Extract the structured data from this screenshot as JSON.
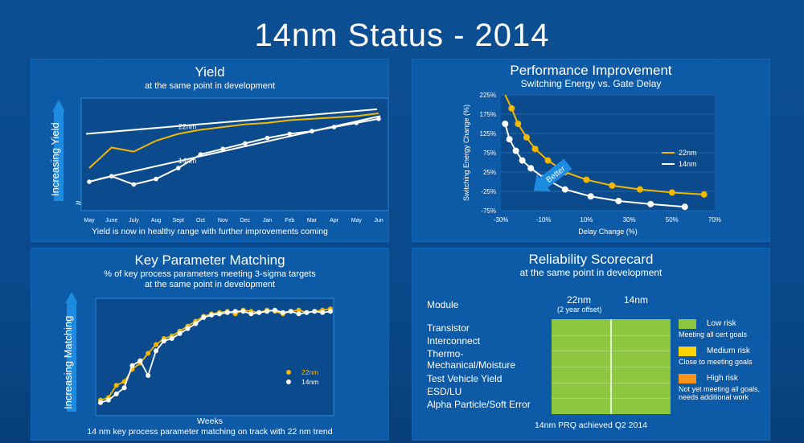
{
  "page_title": "14nm Status - 2014",
  "yield": {
    "title": "Yield",
    "subtitle": "at the same point in development",
    "footer": "Yield is now in healthy range with further improvements coming",
    "arrow_label": "Increasing Yield",
    "break_mark": "≈"
  },
  "performance": {
    "title": "Performance Improvement",
    "subtitle": "Switching Energy vs. Gate Delay",
    "better_label": "Better"
  },
  "key_param": {
    "title": "Key Parameter Matching",
    "subtitle_line1": "% of key process parameters meeting 3-sigma targets",
    "subtitle_line2": "at the same point in development",
    "footer_line1": "Weeks",
    "footer_line2": "14 nm key process parameter matching on track with 22 nm trend",
    "arrow_label": "Increasing Matching"
  },
  "reliability": {
    "title": "Reliability Scorecard",
    "subtitle": "at the same point in development",
    "module_header": "Module",
    "col_22nm": "22nm",
    "col_22nm_note": "(2 year offset)",
    "col_14nm": "14nm",
    "modules": [
      "Transistor",
      "Interconnect",
      "Thermo-\nMechanical/Moisture",
      "Test Vehicle Yield",
      "ESD/LU",
      "Alpha Particle/Soft Error"
    ],
    "footer": "14nm PRQ achieved Q2 2014",
    "legend": [
      {
        "label": "Low risk",
        "desc": "Meeting all cert goals",
        "color": "#8dc63f"
      },
      {
        "label": "Medium risk",
        "desc": "Close to meeting goals",
        "color": "#ffd200"
      },
      {
        "label": "High risk",
        "desc": "Not yet meeting all goals, needs additional work",
        "color": "#f7941d"
      }
    ],
    "cell_color": "#8dc63f"
  },
  "chart_data": [
    {
      "type": "line",
      "title": "Yield",
      "categories": [
        "May",
        "June",
        "July",
        "Aug",
        "Sept",
        "Oct",
        "Nov",
        "Dec",
        "Jan",
        "Feb",
        "Mar",
        "Apr",
        "May",
        "Jun"
      ],
      "series": [
        {
          "name": "22nm",
          "color": "#f5b800",
          "values": [
            30,
            45,
            42,
            50,
            55,
            58,
            60,
            62,
            63,
            65,
            66,
            67,
            68,
            70
          ]
        },
        {
          "name": "14nm",
          "color": "#ffffff",
          "values": [
            20,
            24,
            18,
            22,
            30,
            40,
            44,
            48,
            52,
            55,
            57,
            60,
            63,
            66
          ]
        }
      ]
    },
    {
      "type": "line",
      "title": "Performance Improvement",
      "xlabel": "Delay Change (%)",
      "ylabel": "Switching Energy Change (%)",
      "xlim": [
        -30,
        70
      ],
      "ylim": [
        -75,
        225
      ],
      "x_ticks": [
        "-30%",
        "-10%",
        "10%",
        "30%",
        "50%",
        "70%"
      ],
      "y_ticks": [
        "225%",
        "175%",
        "125%",
        "75%",
        "25%",
        "-25%",
        "-75%"
      ],
      "legend_position": "top-right",
      "series": [
        {
          "name": "22nm",
          "color": "#f5b800",
          "x": [
            -28,
            -25,
            -22,
            -18,
            -14,
            -8,
            0,
            10,
            22,
            35,
            50,
            65
          ],
          "y": [
            240,
            190,
            150,
            115,
            85,
            55,
            25,
            5,
            -10,
            -20,
            -28,
            -33
          ]
        },
        {
          "name": "14nm",
          "color": "#ffffff",
          "x": [
            -28,
            -26,
            -23,
            -20,
            -16,
            -10,
            0,
            12,
            25,
            40,
            56
          ],
          "y": [
            150,
            110,
            80,
            55,
            35,
            10,
            -20,
            -38,
            -50,
            -58,
            -65
          ]
        }
      ]
    },
    {
      "type": "line",
      "title": "Key Parameter Matching",
      "xlabel": "Weeks",
      "legend_position": "bottom-right",
      "series": [
        {
          "name": "22nm",
          "color": "#f5b800",
          "values": [
            10,
            12,
            22,
            25,
            35,
            40,
            48,
            55,
            60,
            62,
            66,
            70,
            74,
            78,
            80,
            81,
            82,
            80,
            83,
            82,
            81,
            83,
            82,
            80,
            82,
            83,
            81,
            82,
            83,
            84
          ]
        },
        {
          "name": "14nm",
          "color": "#ffffff",
          "values": [
            8,
            10,
            15,
            20,
            38,
            42,
            30,
            50,
            58,
            60,
            64,
            68,
            72,
            77,
            79,
            80,
            81,
            82,
            82,
            80,
            81,
            82,
            83,
            81,
            82,
            80,
            81,
            82,
            81,
            82
          ]
        }
      ]
    }
  ]
}
